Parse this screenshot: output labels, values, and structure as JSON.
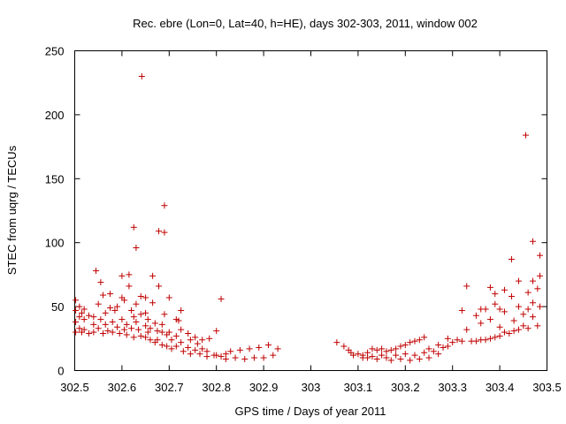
{
  "chart_data": {
    "type": "scatter",
    "title": "Rec. ebre (Lon=0, Lat=40, h=HE), days 302-303, 2011, window 002",
    "xlabel": "GPS time / Days of year 2011",
    "ylabel": "STEC from uqrg / TECUs",
    "xlim": [
      302.5,
      303.5
    ],
    "ylim": [
      0,
      250
    ],
    "xticks": [
      "302.5",
      "302.6",
      "302.7",
      "302.8",
      "302.9",
      "303",
      "303.1",
      "303.2",
      "303.3",
      "303.4",
      "303.5"
    ],
    "yticks": [
      "0",
      "50",
      "100",
      "150",
      "200",
      "250"
    ],
    "grid": false,
    "marker": "+",
    "color": "#c00000",
    "points": [
      [
        302.502,
        55
      ],
      [
        302.502,
        47
      ],
      [
        302.502,
        38
      ],
      [
        302.502,
        30
      ],
      [
        302.51,
        50
      ],
      [
        302.51,
        42
      ],
      [
        302.51,
        33
      ],
      [
        302.515,
        45
      ],
      [
        302.515,
        30
      ],
      [
        302.52,
        48
      ],
      [
        302.52,
        40
      ],
      [
        302.52,
        32
      ],
      [
        302.53,
        43
      ],
      [
        302.53,
        29
      ],
      [
        302.54,
        42
      ],
      [
        302.54,
        36
      ],
      [
        302.54,
        30
      ],
      [
        302.545,
        78
      ],
      [
        302.55,
        52
      ],
      [
        302.55,
        33
      ],
      [
        302.555,
        69
      ],
      [
        302.555,
        40
      ],
      [
        302.56,
        59
      ],
      [
        302.56,
        29
      ],
      [
        302.565,
        45
      ],
      [
        302.565,
        36
      ],
      [
        302.57,
        31
      ],
      [
        302.575,
        60
      ],
      [
        302.575,
        49
      ],
      [
        302.58,
        38
      ],
      [
        302.58,
        30
      ],
      [
        302.585,
        47
      ],
      [
        302.59,
        50
      ],
      [
        302.59,
        34
      ],
      [
        302.595,
        29
      ],
      [
        302.6,
        74
      ],
      [
        302.6,
        57
      ],
      [
        302.6,
        40
      ],
      [
        302.605,
        55
      ],
      [
        302.605,
        32
      ],
      [
        302.61,
        36
      ],
      [
        302.61,
        28
      ],
      [
        302.615,
        75
      ],
      [
        302.615,
        66
      ],
      [
        302.62,
        47
      ],
      [
        302.62,
        33
      ],
      [
        302.625,
        112
      ],
      [
        302.625,
        42
      ],
      [
        302.625,
        26
      ],
      [
        302.63,
        96
      ],
      [
        302.63,
        52
      ],
      [
        302.63,
        38
      ],
      [
        302.635,
        32
      ],
      [
        302.64,
        58
      ],
      [
        302.64,
        44
      ],
      [
        302.64,
        27
      ],
      [
        302.642,
        230
      ],
      [
        302.65,
        57
      ],
      [
        302.65,
        45
      ],
      [
        302.65,
        35
      ],
      [
        302.65,
        26
      ],
      [
        302.655,
        40
      ],
      [
        302.655,
        30
      ],
      [
        302.66,
        33
      ],
      [
        302.66,
        24
      ],
      [
        302.665,
        74
      ],
      [
        302.665,
        53
      ],
      [
        302.67,
        37
      ],
      [
        302.67,
        22
      ],
      [
        302.675,
        31
      ],
      [
        302.675,
        24
      ],
      [
        302.678,
        109
      ],
      [
        302.678,
        66
      ],
      [
        302.685,
        36
      ],
      [
        302.685,
        30
      ],
      [
        302.685,
        20
      ],
      [
        302.69,
        129
      ],
      [
        302.69,
        108
      ],
      [
        302.69,
        44
      ],
      [
        302.695,
        28
      ],
      [
        302.695,
        19
      ],
      [
        302.7,
        57
      ],
      [
        302.7,
        30
      ],
      [
        302.705,
        24
      ],
      [
        302.705,
        17
      ],
      [
        302.715,
        40
      ],
      [
        302.715,
        27
      ],
      [
        302.715,
        19
      ],
      [
        302.72,
        39
      ],
      [
        302.725,
        47
      ],
      [
        302.725,
        32
      ],
      [
        302.725,
        22
      ],
      [
        302.73,
        15
      ],
      [
        302.74,
        29
      ],
      [
        302.74,
        18
      ],
      [
        302.745,
        24
      ],
      [
        302.745,
        13
      ],
      [
        302.755,
        26
      ],
      [
        302.755,
        16
      ],
      [
        302.76,
        21
      ],
      [
        302.765,
        13
      ],
      [
        302.77,
        24
      ],
      [
        302.77,
        17
      ],
      [
        302.78,
        15
      ],
      [
        302.78,
        11
      ],
      [
        302.785,
        25
      ],
      [
        302.795,
        12
      ],
      [
        302.8,
        31
      ],
      [
        302.8,
        12
      ],
      [
        302.81,
        56
      ],
      [
        302.81,
        11
      ],
      [
        302.82,
        13
      ],
      [
        302.82,
        9
      ],
      [
        302.83,
        15
      ],
      [
        302.84,
        10
      ],
      [
        302.85,
        16
      ],
      [
        302.86,
        9
      ],
      [
        302.87,
        17
      ],
      [
        302.88,
        10
      ],
      [
        302.89,
        18
      ],
      [
        302.9,
        10
      ],
      [
        302.91,
        20
      ],
      [
        302.92,
        12
      ],
      [
        302.93,
        17
      ],
      [
        303.055,
        22
      ],
      [
        303.07,
        19
      ],
      [
        303.08,
        16
      ],
      [
        303.085,
        14
      ],
      [
        303.09,
        12
      ],
      [
        303.1,
        13
      ],
      [
        303.11,
        12
      ],
      [
        303.11,
        10
      ],
      [
        303.12,
        14
      ],
      [
        303.12,
        10
      ],
      [
        303.13,
        17
      ],
      [
        303.13,
        11
      ],
      [
        303.14,
        16
      ],
      [
        303.14,
        9
      ],
      [
        303.15,
        17
      ],
      [
        303.15,
        12
      ],
      [
        303.16,
        15
      ],
      [
        303.16,
        10
      ],
      [
        303.17,
        16
      ],
      [
        303.17,
        8
      ],
      [
        303.18,
        17
      ],
      [
        303.18,
        12
      ],
      [
        303.19,
        19
      ],
      [
        303.19,
        9
      ],
      [
        303.2,
        20
      ],
      [
        303.2,
        13
      ],
      [
        303.21,
        22
      ],
      [
        303.21,
        8
      ],
      [
        303.22,
        23
      ],
      [
        303.22,
        12
      ],
      [
        303.23,
        24
      ],
      [
        303.23,
        9
      ],
      [
        303.24,
        26
      ],
      [
        303.24,
        14
      ],
      [
        303.25,
        17
      ],
      [
        303.25,
        10
      ],
      [
        303.26,
        15
      ],
      [
        303.27,
        20
      ],
      [
        303.27,
        13
      ],
      [
        303.28,
        18
      ],
      [
        303.29,
        25
      ],
      [
        303.29,
        19
      ],
      [
        303.3,
        22
      ],
      [
        303.31,
        24
      ],
      [
        303.32,
        47
      ],
      [
        303.32,
        23
      ],
      [
        303.33,
        66
      ],
      [
        303.33,
        32
      ],
      [
        303.34,
        23
      ],
      [
        303.35,
        43
      ],
      [
        303.35,
        23
      ],
      [
        303.36,
        48
      ],
      [
        303.36,
        37
      ],
      [
        303.36,
        24
      ],
      [
        303.37,
        48
      ],
      [
        303.37,
        24
      ],
      [
        303.38,
        65
      ],
      [
        303.38,
        40
      ],
      [
        303.38,
        25
      ],
      [
        303.39,
        60
      ],
      [
        303.39,
        52
      ],
      [
        303.39,
        26
      ],
      [
        303.4,
        48
      ],
      [
        303.4,
        34
      ],
      [
        303.4,
        27
      ],
      [
        303.41,
        63
      ],
      [
        303.41,
        46
      ],
      [
        303.41,
        30
      ],
      [
        303.42,
        29
      ],
      [
        303.425,
        87
      ],
      [
        303.425,
        58
      ],
      [
        303.43,
        39
      ],
      [
        303.43,
        31
      ],
      [
        303.44,
        70
      ],
      [
        303.44,
        50
      ],
      [
        303.44,
        32
      ],
      [
        303.45,
        44
      ],
      [
        303.45,
        35
      ],
      [
        303.455,
        184
      ],
      [
        303.46,
        61
      ],
      [
        303.46,
        48
      ],
      [
        303.46,
        33
      ],
      [
        303.47,
        101
      ],
      [
        303.47,
        70
      ],
      [
        303.47,
        53
      ],
      [
        303.47,
        42
      ],
      [
        303.48,
        64
      ],
      [
        303.48,
        35
      ],
      [
        303.485,
        90
      ],
      [
        303.485,
        74
      ],
      [
        303.485,
        50
      ]
    ]
  }
}
